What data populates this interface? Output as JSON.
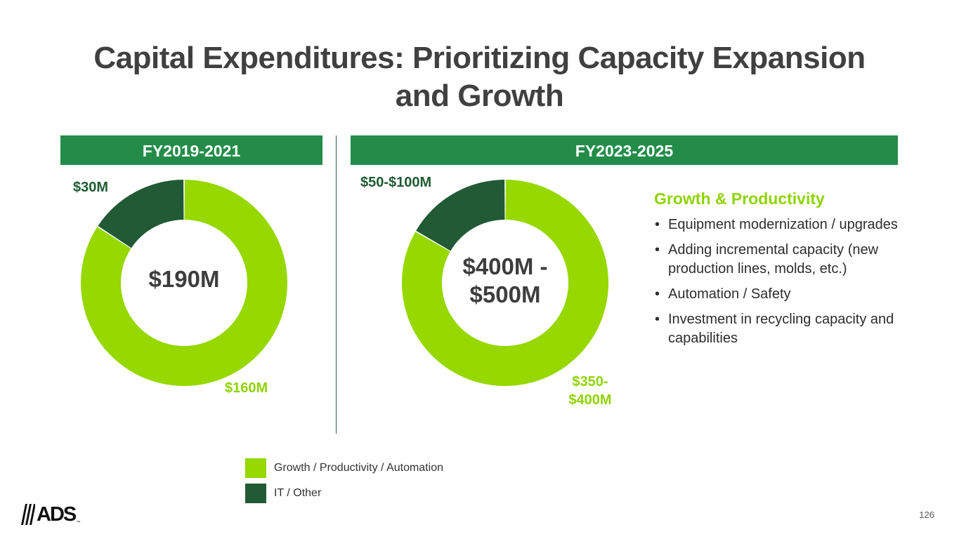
{
  "title": {
    "line1": "Capital Expenditures: Prioritizing Capacity Expansion",
    "line2": "and Growth"
  },
  "chart_data": [
    {
      "type": "pie",
      "variant": "donut",
      "title": "FY2019-2021",
      "center_label": "$190M",
      "slices": [
        {
          "name": "IT / Other",
          "value": 30,
          "label": "$30M",
          "color": "#215a35"
        },
        {
          "name": "Growth / Productivity / Automation",
          "value": 160,
          "label": "$160M",
          "color": "#96d800"
        }
      ]
    },
    {
      "type": "pie",
      "variant": "donut",
      "title": "FY2023-2025",
      "center_label_lines": [
        "$400M -",
        "$500M"
      ],
      "slices": [
        {
          "name": "IT / Other",
          "value": 75,
          "label": "$50-$100M",
          "color": "#215a35"
        },
        {
          "name": "Growth / Productivity / Automation",
          "value": 375,
          "label_lines": [
            "$350-",
            "$400M"
          ],
          "color": "#96d800"
        }
      ]
    }
  ],
  "side_panel": {
    "title": "Growth & Productivity",
    "bullets": [
      "Equipment modernization / upgrades",
      "Adding incremental capacity (new production lines, molds, etc.)",
      "Automation / Safety",
      "Investment in recycling capacity and capabilities"
    ]
  },
  "legend": [
    {
      "label": "Growth / Productivity / Automation",
      "color": "#96d800"
    },
    {
      "label": "IT / Other",
      "color": "#215a35"
    }
  ],
  "logo": {
    "text": "ADS",
    "tm": "™"
  },
  "page_number": "126",
  "colors": {
    "header_green": "#238c49",
    "accent_light": "#8fd400",
    "dark_green": "#215a35",
    "light_green": "#96d800"
  }
}
